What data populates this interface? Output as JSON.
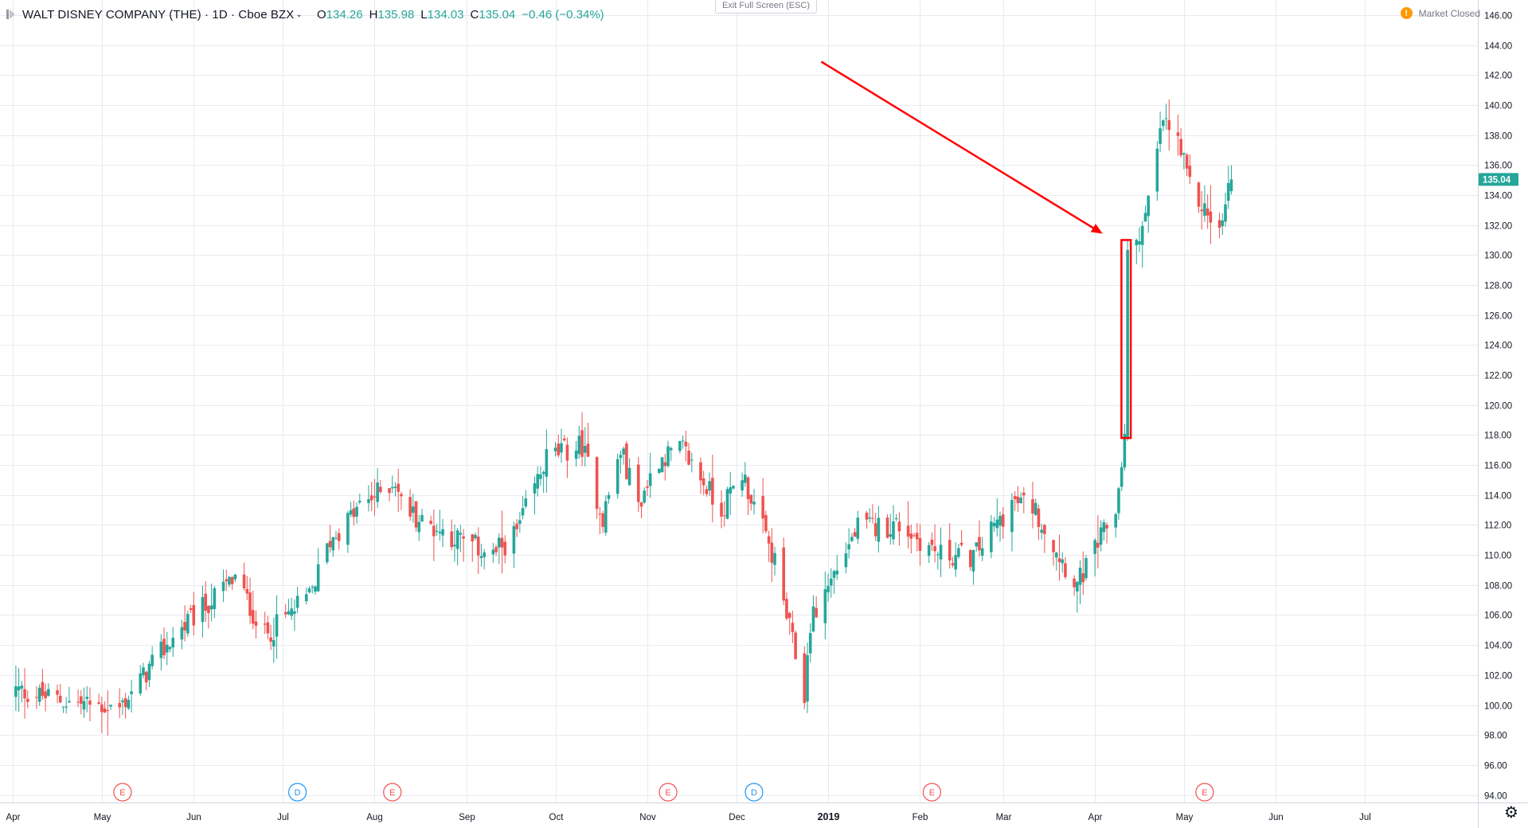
{
  "header": {
    "symbol_title": "WALT DISNEY COMPANY (THE) · 1D · Cboe BZX",
    "open_label": "O",
    "open": "134.26",
    "high_label": "H",
    "high": "135.98",
    "low_label": "L",
    "low": "134.03",
    "close_label": "C",
    "close": "135.04",
    "change": "−0.46 (−0.34%)",
    "exit_fullscreen": "Exit Full Screen (ESC)",
    "market_status": "Market Closed",
    "market_status_icon": "warning-icon"
  },
  "colors": {
    "up": "#26a69a",
    "down": "#ef5350",
    "annotation": "#ff0000",
    "grid": "#e8eaef",
    "earnings": "#ef5350",
    "dividend": "#2196f3",
    "last_price_bg": "#26a69a"
  },
  "chart_data": {
    "type": "candlestick",
    "title": "",
    "ylim": [
      93.5,
      147
    ],
    "y_ticks": [
      "94.00",
      "96.00",
      "98.00",
      "100.00",
      "102.00",
      "104.00",
      "106.00",
      "108.00",
      "110.00",
      "112.00",
      "114.00",
      "116.00",
      "118.00",
      "120.00",
      "122.00",
      "124.00",
      "126.00",
      "128.00",
      "130.00",
      "132.00",
      "134.00",
      "136.00",
      "138.00",
      "140.00",
      "142.00",
      "144.00",
      "146.00"
    ],
    "x_ticks": [
      "Apr",
      "May",
      "Jun",
      "Jul",
      "Aug",
      "Sep",
      "Oct",
      "Nov",
      "Dec",
      "2019",
      "Feb",
      "Mar",
      "Apr",
      "May",
      "Jun",
      "Jul"
    ],
    "x_ticks_bold": [
      "2019"
    ],
    "last_price": "135.04",
    "grid": true,
    "series_anchors": {
      "dates": [
        "2018-04-02",
        "2018-04-20",
        "2018-05-07",
        "2018-05-25",
        "2018-06-15",
        "2018-06-25",
        "2018-07-10",
        "2018-07-17",
        "2018-07-27",
        "2018-08-08",
        "2018-08-10",
        "2018-08-17",
        "2018-09-10",
        "2018-09-18",
        "2018-09-28",
        "2018-10-10",
        "2018-10-17",
        "2018-10-23",
        "2018-10-29",
        "2018-11-05",
        "2018-11-13",
        "2018-11-26",
        "2018-12-03",
        "2018-12-14",
        "2018-12-24",
        "2018-12-26",
        "2019-01-04",
        "2019-01-11",
        "2019-01-25",
        "2019-02-08",
        "2019-02-19",
        "2019-03-04",
        "2019-03-11",
        "2019-03-22",
        "2019-03-26",
        "2019-04-08",
        "2019-04-11",
        "2019-04-12",
        "2019-04-18",
        "2019-04-24",
        "2019-04-29",
        "2019-05-03",
        "2019-05-13",
        "2019-05-17"
      ],
      "close": [
        101.0,
        100.2,
        99.8,
        104.5,
        108.5,
        104.6,
        107.2,
        111.0,
        113.2,
        115.0,
        113.5,
        112.2,
        110.0,
        111.5,
        116.5,
        117.3,
        112.5,
        117.0,
        113.4,
        116.5,
        117.0,
        113.0,
        115.5,
        109.5,
        100.6,
        105.5,
        109.2,
        111.8,
        112.0,
        110.0,
        109.9,
        113.5,
        113.3,
        109.3,
        108.0,
        113.0,
        117.8,
        129.8,
        132.5,
        139.0,
        137.5,
        134.5,
        131.5,
        135.04
      ]
    },
    "events": [
      {
        "label": "E",
        "kind": "earnings",
        "date": "2018-05-08"
      },
      {
        "label": "D",
        "kind": "dividend",
        "date": "2018-07-06"
      },
      {
        "label": "E",
        "kind": "earnings",
        "date": "2018-08-07"
      },
      {
        "label": "E",
        "kind": "earnings",
        "date": "2018-11-08"
      },
      {
        "label": "D",
        "kind": "dividend",
        "date": "2018-12-07"
      },
      {
        "label": "E",
        "kind": "earnings",
        "date": "2019-02-05"
      },
      {
        "label": "E",
        "kind": "earnings",
        "date": "2019-05-08"
      }
    ],
    "annotations": {
      "highlight_box": {
        "date_from": "2019-04-11",
        "date_to": "2019-04-12",
        "price_low": 117.8,
        "price_high": 131.0
      },
      "arrow": {
        "points_to": "highlight_box",
        "direction": "top-left to bottom-right"
      }
    }
  },
  "toolbar": {
    "settings_icon": "gear-icon"
  }
}
